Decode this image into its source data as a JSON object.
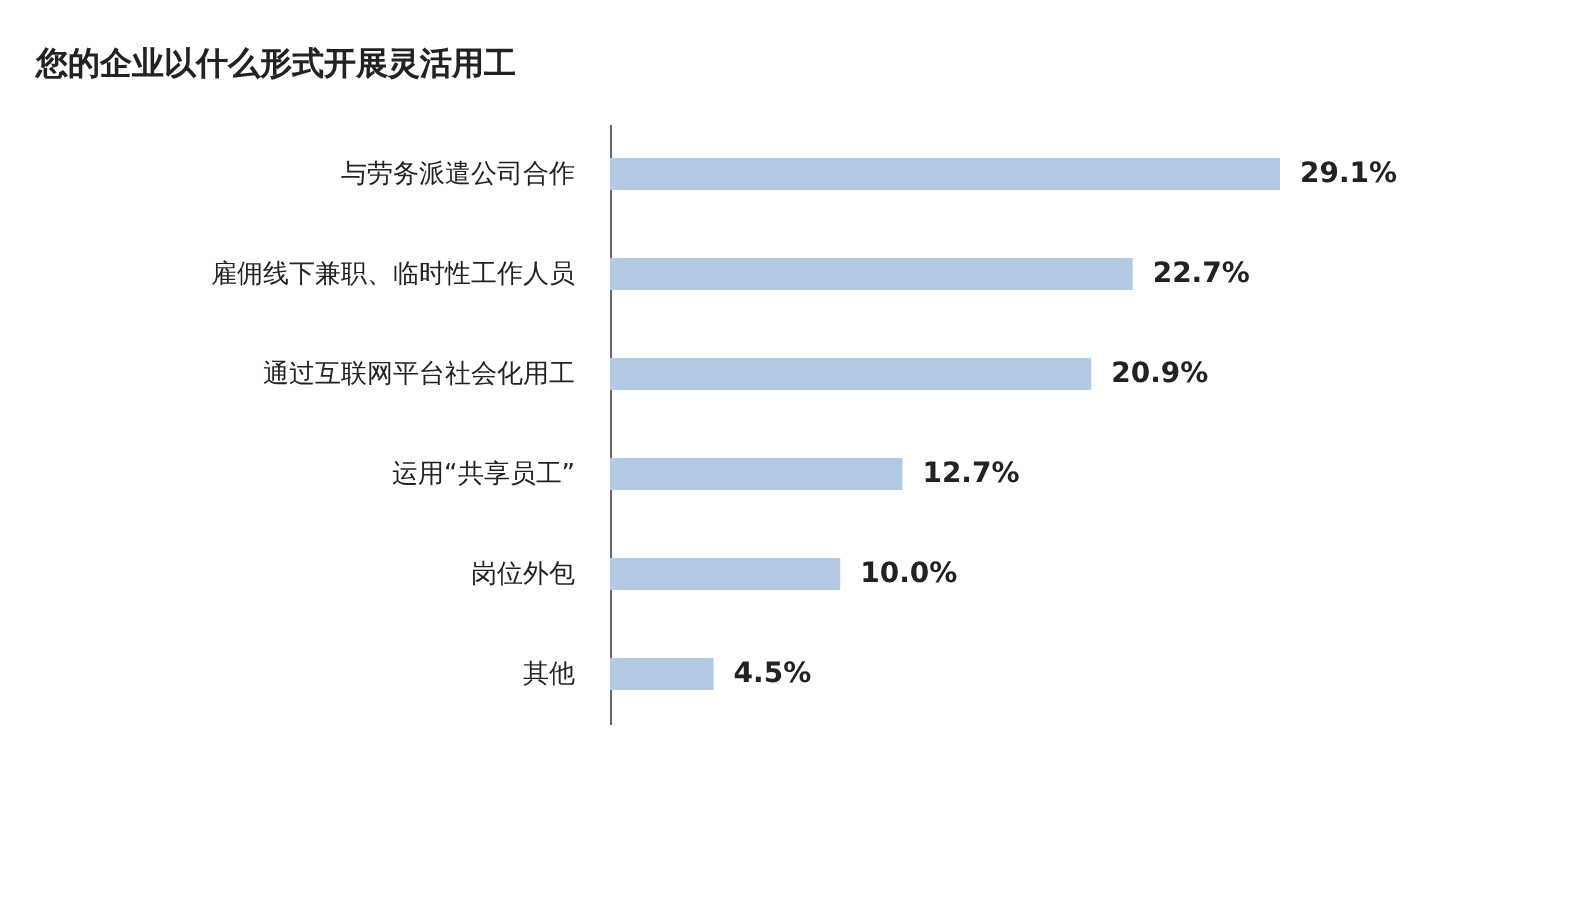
{
  "chart_data": {
    "type": "bar",
    "orientation": "horizontal",
    "title": "您的企业以什么形式开展灵活用工",
    "categories": [
      "与劳务派遣公司合作",
      "雇佣线下兼职、临时性工作人员",
      "通过互联网平台社会化用工",
      "运用“共享员工”",
      "岗位外包",
      "其他"
    ],
    "values": [
      29.1,
      22.7,
      20.9,
      12.7,
      10.0,
      4.5
    ],
    "value_labels": [
      "29.1%",
      "22.7%",
      "20.9%",
      "12.7%",
      "10.0%",
      "4.5%"
    ],
    "color": "#b4c9e3"
  }
}
